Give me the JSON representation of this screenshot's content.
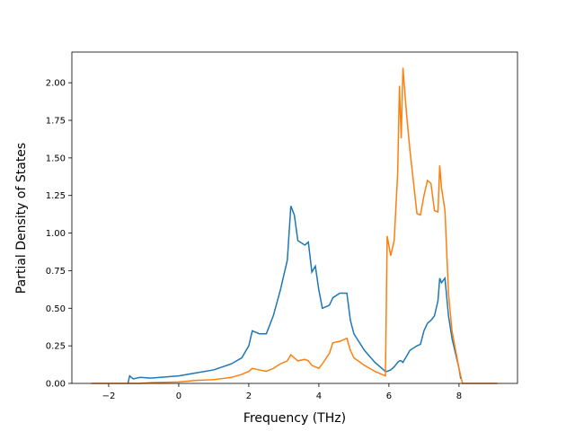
{
  "chart_data": {
    "type": "line",
    "xlabel": "Frequency (THz)",
    "ylabel": "Partial Density of States",
    "x": [
      -2.5,
      -1.5,
      -1.45,
      -1.4,
      -1.3,
      -1.1,
      -0.8,
      0,
      0.5,
      1,
      1.5,
      1.8,
      2.0,
      2.1,
      2.3,
      2.5,
      2.7,
      2.9,
      3.1,
      3.2,
      3.3,
      3.4,
      3.6,
      3.7,
      3.8,
      3.9,
      4.0,
      4.1,
      4.3,
      4.4,
      4.6,
      4.8,
      4.9,
      5.0,
      5.3,
      5.6,
      5.9,
      5.95,
      6.05,
      6.15,
      6.25,
      6.3,
      6.35,
      6.4,
      6.5,
      6.6,
      6.8,
      6.9,
      7.0,
      7.1,
      7.2,
      7.3,
      7.4,
      7.45,
      7.5,
      7.6,
      7.7,
      7.8,
      8.0,
      8.05,
      8.1,
      9.1
    ],
    "series": [
      {
        "color": "#1f77b4",
        "values": [
          null,
          null,
          0.0,
          0.05,
          0.03,
          0.04,
          0.035,
          0.05,
          0.07,
          0.09,
          0.13,
          0.17,
          0.25,
          0.35,
          0.33,
          0.33,
          0.45,
          0.62,
          0.82,
          1.18,
          1.12,
          0.95,
          0.92,
          0.94,
          0.74,
          0.78,
          0.62,
          0.5,
          0.52,
          0.57,
          0.6,
          0.6,
          0.42,
          0.33,
          0.22,
          0.14,
          0.08,
          0.08,
          0.09,
          0.11,
          0.14,
          0.15,
          0.15,
          0.14,
          0.18,
          0.22,
          0.25,
          0.26,
          0.35,
          0.4,
          0.42,
          0.45,
          0.55,
          0.7,
          0.67,
          0.7,
          0.45,
          0.3,
          0.1,
          0.03,
          null,
          null
        ]
      },
      {
        "color": "#ff7f0e",
        "values": [
          0,
          0,
          0,
          0,
          0,
          0,
          0.005,
          0.01,
          0.02,
          0.025,
          0.04,
          0.06,
          0.08,
          0.1,
          0.09,
          0.08,
          0.1,
          0.13,
          0.15,
          0.19,
          0.17,
          0.15,
          0.16,
          0.15,
          0.12,
          0.11,
          0.1,
          0.13,
          0.2,
          0.27,
          0.28,
          0.3,
          0.22,
          0.17,
          0.12,
          0.08,
          0.05,
          0.98,
          0.85,
          0.95,
          1.4,
          1.98,
          1.63,
          2.1,
          1.8,
          1.55,
          1.13,
          1.12,
          1.25,
          1.35,
          1.33,
          1.15,
          1.14,
          1.45,
          1.3,
          1.15,
          0.6,
          0.35,
          0.1,
          0.05,
          0,
          0
        ]
      }
    ],
    "xlim": [
      -3.05,
      9.67
    ],
    "ylim": [
      0,
      2.204
    ],
    "xticks": [
      {
        "value": -2,
        "label": "−2"
      },
      0,
      2,
      4,
      6,
      8
    ],
    "yticks": [
      {
        "value": 0,
        "label": "0.00"
      },
      {
        "value": 0.25,
        "label": "0.25"
      },
      {
        "value": 0.5,
        "label": "0.50"
      },
      {
        "value": 0.75,
        "label": "0.75"
      },
      {
        "value": 1,
        "label": "1.00"
      },
      {
        "value": 1.25,
        "label": "1.25"
      },
      {
        "value": 1.5,
        "label": "1.50"
      },
      {
        "value": 1.75,
        "label": "1.75"
      },
      {
        "value": 2,
        "label": "2.00"
      }
    ]
  }
}
